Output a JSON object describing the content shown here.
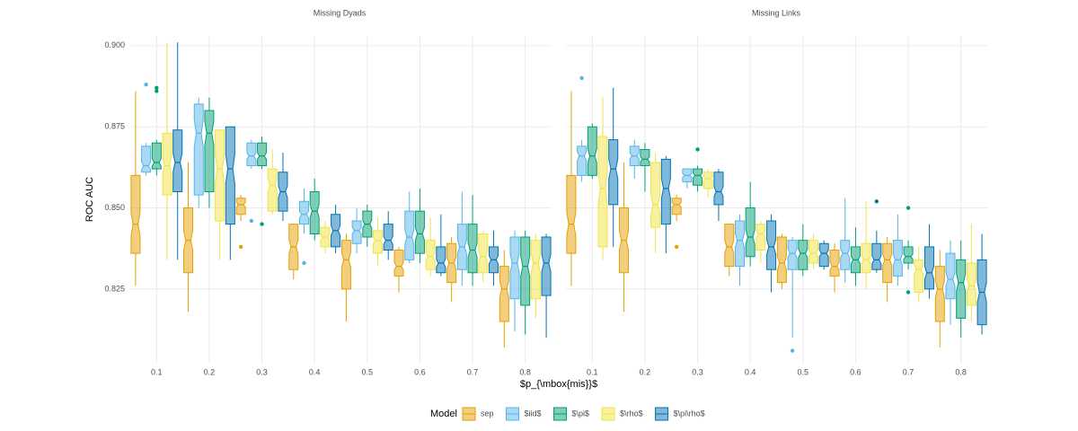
{
  "chart_data": [
    {
      "type": "box",
      "title": "Missing Dyads",
      "ylabel": "ROC AUC",
      "xlabel": "$p_{\\mbox{mis}}$",
      "legend_title": "Model",
      "legend": "bottom",
      "grid": true,
      "categories": [
        0.1,
        0.2,
        0.3,
        0.4,
        0.5,
        0.6,
        0.7,
        0.8
      ],
      "ylim": [
        0.802,
        0.903
      ],
      "yticks": [
        0.825,
        {
          "value": 0.85,
          "label": "0.850"
        },
        0.875,
        {
          "value": 0.9,
          "label": "0.900"
        }
      ],
      "series": [
        {
          "name": "sep",
          "color": "#E69F00",
          "values": [
            [
              0.826,
              0.836,
              0.845,
              0.86,
              0.886
            ],
            [
              0.818,
              0.83,
              0.84,
              0.85,
              0.864
            ],
            [
              0.846,
              0.848,
              0.851,
              0.853,
              0.854
            ],
            [
              0.828,
              0.831,
              0.838,
              0.845,
              0.845
            ],
            [
              0.815,
              0.825,
              0.834,
              0.84,
              0.842
            ],
            [
              0.824,
              0.829,
              0.832,
              0.837,
              0.838
            ],
            [
              0.821,
              0.827,
              0.833,
              0.839,
              0.841
            ],
            [
              0.807,
              0.815,
              0.825,
              0.832,
              0.837
            ]
          ],
          "outliers": [
            [],
            [],
            [
              0.838
            ],
            [],
            [],
            [],
            [],
            []
          ]
        },
        {
          "name": "$iid$",
          "color": "#56B4E9",
          "values": [
            [
              0.86,
              0.861,
              0.863,
              0.869,
              0.87
            ],
            [
              0.85,
              0.854,
              0.873,
              0.882,
              0.884
            ],
            [
              0.862,
              0.863,
              0.866,
              0.87,
              0.871
            ],
            [
              0.842,
              0.845,
              0.848,
              0.852,
              0.856
            ],
            [
              0.836,
              0.839,
              0.843,
              0.846,
              0.85
            ],
            [
              0.833,
              0.834,
              0.841,
              0.849,
              0.855
            ],
            [
              0.826,
              0.831,
              0.838,
              0.845,
              0.855
            ],
            [
              0.812,
              0.822,
              0.833,
              0.841,
              0.843
            ]
          ],
          "outliers": [
            [
              0.888
            ],
            [],
            [
              0.846
            ],
            [
              0.833
            ],
            [],
            [],
            [],
            []
          ]
        },
        {
          "name": "$\\pi$",
          "color": "#009E73",
          "values": [
            [
              0.86,
              0.862,
              0.864,
              0.87,
              0.871
            ],
            [
              0.85,
              0.855,
              0.873,
              0.88,
              0.884
            ],
            [
              0.862,
              0.863,
              0.866,
              0.87,
              0.872
            ],
            [
              0.84,
              0.842,
              0.849,
              0.855,
              0.859
            ],
            [
              0.838,
              0.841,
              0.845,
              0.849,
              0.851
            ],
            [
              0.833,
              0.836,
              0.842,
              0.849,
              0.856
            ],
            [
              0.826,
              0.83,
              0.837,
              0.845,
              0.854
            ],
            [
              0.811,
              0.82,
              0.832,
              0.841,
              0.843
            ]
          ],
          "outliers": [
            [
              0.887,
              0.886
            ],
            [],
            [
              0.845
            ],
            [],
            [],
            [],
            [],
            []
          ]
        },
        {
          "name": "$\\rho$",
          "color": "#F0E442",
          "values": [
            [
              0.834,
              0.854,
              0.863,
              0.873,
              0.901
            ],
            [
              0.834,
              0.846,
              0.862,
              0.874,
              0.874
            ],
            [
              0.848,
              0.849,
              0.857,
              0.862,
              0.868
            ],
            [
              0.836,
              0.838,
              0.841,
              0.844,
              0.846
            ],
            [
              0.832,
              0.836,
              0.84,
              0.843,
              0.847
            ],
            [
              0.829,
              0.831,
              0.835,
              0.84,
              0.847
            ],
            [
              0.827,
              0.83,
              0.835,
              0.842,
              0.843
            ],
            [
              0.816,
              0.822,
              0.833,
              0.84,
              0.842
            ]
          ],
          "outliers": [
            [],
            [],
            [],
            [],
            [],
            [],
            [],
            []
          ]
        },
        {
          "name": "$\\pi\\rho$",
          "color": "#0072B2",
          "values": [
            [
              0.834,
              0.855,
              0.864,
              0.874,
              0.901
            ],
            [
              0.834,
              0.845,
              0.862,
              0.875,
              0.875
            ],
            [
              0.846,
              0.849,
              0.855,
              0.861,
              0.867
            ],
            [
              0.836,
              0.838,
              0.843,
              0.848,
              0.851
            ],
            [
              0.834,
              0.837,
              0.84,
              0.845,
              0.849
            ],
            [
              0.829,
              0.83,
              0.833,
              0.838,
              0.848
            ],
            [
              0.826,
              0.83,
              0.834,
              0.838,
              0.843
            ],
            [
              0.81,
              0.823,
              0.833,
              0.841,
              0.842
            ]
          ],
          "outliers": [
            [],
            [],
            [],
            [],
            [],
            [],
            [],
            []
          ]
        }
      ]
    },
    {
      "type": "box",
      "title": "Missing Links",
      "grid": true,
      "categories": [
        0.1,
        0.2,
        0.3,
        0.4,
        0.5,
        0.6,
        0.7,
        0.8
      ],
      "ylim": [
        0.802,
        0.903
      ],
      "yticks": [
        0.825,
        0.85,
        0.875,
        0.9
      ],
      "series": [
        {
          "color": "#E69F00",
          "values": [
            [
              0.826,
              0.836,
              0.845,
              0.86,
              0.886
            ],
            [
              0.818,
              0.83,
              0.84,
              0.85,
              0.864
            ],
            [
              0.846,
              0.848,
              0.851,
              0.853,
              0.854
            ],
            [
              0.829,
              0.832,
              0.838,
              0.845,
              0.845
            ],
            [
              0.825,
              0.827,
              0.833,
              0.841,
              0.842
            ],
            [
              0.824,
              0.829,
              0.832,
              0.837,
              0.839
            ],
            [
              0.821,
              0.827,
              0.834,
              0.839,
              0.841
            ],
            [
              0.807,
              0.815,
              0.825,
              0.832,
              0.837
            ]
          ],
          "outliers": [
            [],
            [],
            [
              0.838
            ],
            [],
            [],
            [],
            [],
            []
          ]
        },
        {
          "color": "#56B4E9",
          "values": [
            [
              0.858,
              0.86,
              0.866,
              0.869,
              0.871
            ],
            [
              0.859,
              0.863,
              0.866,
              0.869,
              0.871
            ],
            [
              0.856,
              0.858,
              0.86,
              0.862,
              0.862
            ],
            [
              0.826,
              0.832,
              0.84,
              0.846,
              0.848
            ],
            [
              0.81,
              0.831,
              0.836,
              0.84,
              0.841
            ],
            [
              0.827,
              0.831,
              0.836,
              0.84,
              0.853
            ],
            [
              0.826,
              0.829,
              0.834,
              0.84,
              0.848
            ],
            [
              0.814,
              0.822,
              0.828,
              0.836,
              0.84
            ]
          ],
          "outliers": [
            [
              0.89
            ],
            [],
            [],
            [],
            [
              0.806
            ],
            [],
            [],
            []
          ]
        },
        {
          "color": "#009E73",
          "values": [
            [
              0.859,
              0.86,
              0.866,
              0.875,
              0.876
            ],
            [
              0.855,
              0.863,
              0.865,
              0.868,
              0.87
            ],
            [
              0.855,
              0.857,
              0.86,
              0.862,
              0.863
            ],
            [
              0.832,
              0.835,
              0.841,
              0.85,
              0.858
            ],
            [
              0.829,
              0.831,
              0.836,
              0.84,
              0.845
            ],
            [
              0.826,
              0.83,
              0.834,
              0.838,
              0.844
            ],
            [
              0.831,
              0.833,
              0.835,
              0.838,
              0.84
            ],
            [
              0.81,
              0.816,
              0.827,
              0.834,
              0.84
            ]
          ],
          "outliers": [
            [],
            [],
            [
              0.868
            ],
            [],
            [],
            [],
            [
              0.85,
              0.824
            ],
            []
          ]
        },
        {
          "color": "#F0E442",
          "values": [
            [
              0.834,
              0.838,
              0.856,
              0.872,
              0.884
            ],
            [
              0.836,
              0.844,
              0.851,
              0.864,
              0.867
            ],
            [
              0.853,
              0.856,
              0.859,
              0.861,
              0.862
            ],
            [
              0.833,
              0.837,
              0.842,
              0.845,
              0.846
            ],
            [
              0.831,
              0.833,
              0.836,
              0.84,
              0.842
            ],
            [
              0.825,
              0.83,
              0.834,
              0.839,
              0.852
            ],
            [
              0.821,
              0.824,
              0.831,
              0.834,
              0.838
            ],
            [
              0.815,
              0.82,
              0.826,
              0.833,
              0.845
            ]
          ],
          "outliers": [
            [],
            [],
            [],
            [],
            [],
            [],
            [],
            []
          ]
        },
        {
          "color": "#0072B2",
          "values": [
            [
              0.838,
              0.851,
              0.862,
              0.871,
              0.887
            ],
            [
              0.836,
              0.845,
              0.856,
              0.865,
              0.866
            ],
            [
              0.846,
              0.851,
              0.855,
              0.861,
              0.862
            ],
            [
              0.824,
              0.831,
              0.838,
              0.846,
              0.848
            ],
            [
              0.831,
              0.832,
              0.836,
              0.839,
              0.84
            ],
            [
              0.83,
              0.831,
              0.834,
              0.839,
              0.843
            ],
            [
              0.822,
              0.825,
              0.83,
              0.838,
              0.845
            ],
            [
              0.811,
              0.814,
              0.824,
              0.834,
              0.842
            ]
          ],
          "outliers": [
            [],
            [],
            [],
            [],
            [],
            [
              0.852
            ],
            [],
            []
          ]
        }
      ]
    }
  ]
}
